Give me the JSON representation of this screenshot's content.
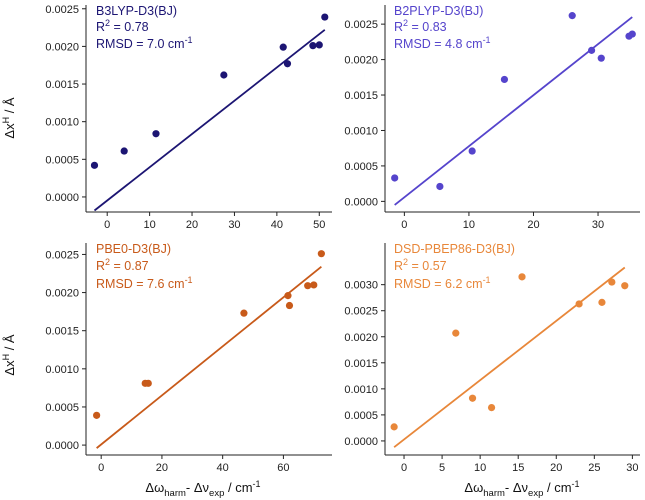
{
  "figure": {
    "ylabel_prefix": "Δx",
    "ylabel_sup": "H",
    "ylabel_suffix": " / Å",
    "xlabel": {
      "p1": "Δω",
      "sub1": "harm",
      "p2": "- Δν",
      "sub2": "exp",
      "p3": " / cm",
      "sup": "-1"
    }
  },
  "chart_data": [
    {
      "type": "scatter",
      "title": "B3LYP-D3(BJ)",
      "r2_label": "R",
      "r2_sup": "2",
      "r2_value": " = 0.78",
      "rmsd_text": "RMSD = 7.0 cm",
      "rmsd_sup": "-1",
      "color": "#1c1573",
      "xlim": [
        -5,
        53
      ],
      "ylim": [
        -0.0002,
        0.00255
      ],
      "xticks": [
        0,
        10,
        20,
        30,
        40,
        50
      ],
      "xtick_labels": [
        "0",
        "10",
        "20",
        "30",
        "40",
        "50"
      ],
      "yticks": [
        0.0,
        0.0005,
        0.001,
        0.0015,
        0.002,
        0.0025
      ],
      "ytick_labels": [
        "0.0000",
        "0.0005",
        "0.0010",
        "0.0015",
        "0.0020",
        "0.0025"
      ],
      "points": [
        [
          -3,
          0.00042
        ],
        [
          4,
          0.00061
        ],
        [
          11.5,
          0.00084
        ],
        [
          27.5,
          0.00162
        ],
        [
          41.5,
          0.00199
        ],
        [
          42.5,
          0.00177
        ],
        [
          48.5,
          0.00201
        ],
        [
          50,
          0.00202
        ],
        [
          51.3,
          0.00239
        ]
      ],
      "fit": [
        [
          -3,
          -0.00018
        ],
        [
          51.3,
          0.00222
        ]
      ]
    },
    {
      "type": "scatter",
      "title": "B2PLYP-D3(BJ)",
      "r2_label": "R",
      "r2_sup": "2",
      "r2_value": " = 0.83",
      "rmsd_text": "RMSD = 4.8 cm",
      "rmsd_sup": "-1",
      "color": "#5544cc",
      "xlim": [
        -3,
        36.5
      ],
      "ylim": [
        -0.00015,
        0.00277
      ],
      "xticks": [
        0,
        10,
        20,
        30
      ],
      "xtick_labels": [
        "0",
        "10",
        "20",
        "30"
      ],
      "yticks": [
        0.0,
        0.0005,
        0.001,
        0.0015,
        0.002,
        0.0025
      ],
      "ytick_labels": [
        "0.0000",
        "0.0005",
        "0.0010",
        "0.0015",
        "0.0020",
        "0.0025"
      ],
      "points": [
        [
          -1.5,
          0.00033
        ],
        [
          5.5,
          0.00021
        ],
        [
          10.5,
          0.00071
        ],
        [
          15.5,
          0.00172
        ],
        [
          26,
          0.00262
        ],
        [
          29,
          0.00213
        ],
        [
          30.5,
          0.00202
        ],
        [
          34.8,
          0.00233
        ],
        [
          35.3,
          0.00236
        ]
      ],
      "fit": [
        [
          -1.5,
          -5e-05
        ],
        [
          35.3,
          0.0026
        ]
      ]
    },
    {
      "type": "scatter",
      "title": "PBE0-D3(BJ)",
      "r2_label": "R",
      "r2_sup": "2",
      "r2_value": " = 0.87",
      "rmsd_text": "RMSD = 7.6 cm",
      "rmsd_sup": "-1",
      "color": "#c85a1a",
      "xlim": [
        -5,
        76
      ],
      "ylim": [
        -0.00013,
        0.00265
      ],
      "xticks": [
        0,
        20,
        40,
        60
      ],
      "xtick_labels": [
        "0",
        "20",
        "40",
        "60"
      ],
      "yticks": [
        0.0,
        0.0005,
        0.001,
        0.0015,
        0.002,
        0.0025
      ],
      "ytick_labels": [
        "0.0000",
        "0.0005",
        "0.0010",
        "0.0015",
        "0.0020",
        "0.0025"
      ],
      "points": [
        [
          -1.5,
          0.00039
        ],
        [
          14.5,
          0.00081
        ],
        [
          15.5,
          0.00081
        ],
        [
          47,
          0.00173
        ],
        [
          61.5,
          0.00196
        ],
        [
          62,
          0.00183
        ],
        [
          68,
          0.00209
        ],
        [
          70,
          0.0021
        ],
        [
          72.5,
          0.00251
        ]
      ],
      "fit": [
        [
          -1.5,
          -4e-05
        ],
        [
          72.5,
          0.00234
        ]
      ]
    },
    {
      "type": "scatter",
      "title": "DSD-PBEP86-D3(BJ)",
      "r2_label": "R",
      "r2_sup": "2",
      "r2_value": " = 0.57",
      "rmsd_text": "RMSD = 6.2 cm",
      "rmsd_sup": "-1",
      "color": "#e8873a",
      "xlim": [
        -2.5,
        31
      ],
      "ylim": [
        -0.00027,
        0.0038
      ],
      "xticks": [
        0,
        5,
        10,
        15,
        20,
        25,
        30
      ],
      "xtick_labels": [
        "0",
        "5",
        "10",
        "15",
        "20",
        "25",
        "30"
      ],
      "yticks": [
        0.0,
        0.0005,
        0.001,
        0.0015,
        0.002,
        0.0025,
        0.003
      ],
      "ytick_labels": [
        "0.0000",
        "0.0005",
        "0.0010",
        "0.0015",
        "0.0020",
        "0.0025",
        "0.0030"
      ],
      "points": [
        [
          -1.3,
          0.00027
        ],
        [
          6.8,
          0.00207
        ],
        [
          9,
          0.00082
        ],
        [
          11.5,
          0.00064
        ],
        [
          15.5,
          0.00315
        ],
        [
          23,
          0.00263
        ],
        [
          26,
          0.00266
        ],
        [
          27.3,
          0.00305
        ],
        [
          29,
          0.00298
        ]
      ],
      "fit": [
        [
          -1.3,
          -0.00012
        ],
        [
          29,
          0.00333
        ]
      ]
    }
  ]
}
